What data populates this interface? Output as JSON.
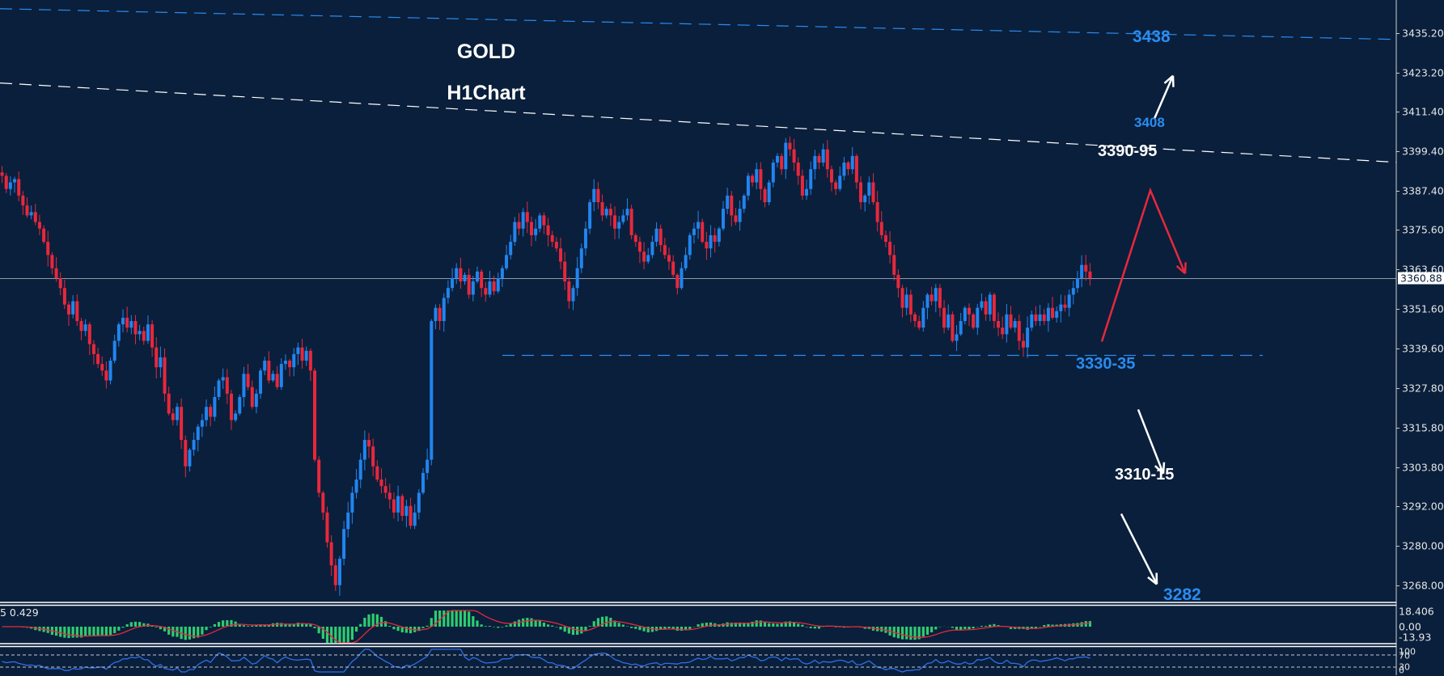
{
  "header": {
    "symbol": "GOLD",
    "timeframe_label": "H1Chart"
  },
  "annotations": {
    "target_top": "3438",
    "level_3408": "3408",
    "resistance": "3390-95",
    "support": "3330-35",
    "support_2": "3310-15",
    "target_bottom": "3282"
  },
  "price_axis": {
    "ticks": [
      "3435.20",
      "3423.20",
      "3411.40",
      "3399.40",
      "3387.40",
      "3375.60",
      "3363.60",
      "3351.60",
      "3339.60",
      "3327.80",
      "3315.80",
      "3303.80",
      "3292.00",
      "3280.00",
      "3268.00"
    ],
    "current_price": "3360.88"
  },
  "macd_panel": {
    "label": "5 0.429",
    "ticks": [
      "18.406",
      "0.00",
      "-13.93"
    ]
  },
  "rsi_panel": {
    "ticks": [
      "100",
      "70",
      "30",
      "0"
    ]
  },
  "colors": {
    "background": "#0a1f3b",
    "bull": "#2185f0",
    "bear": "#e8283c",
    "macd_hist": "#2ecc71",
    "macd_signal": "#e8283c",
    "rsi_line": "#2f6ee8",
    "trend_blue": "#2a8cf0",
    "trend_white": "#ffffff",
    "current_line": "#8e9aab"
  },
  "chart_data": {
    "type": "candlestick",
    "title": "GOLD H1Chart",
    "xlabel": "",
    "ylabel": "",
    "ylim": [
      3262,
      3446
    ],
    "current_price": 3360.88,
    "trendlines": [
      {
        "name": "upper-channel",
        "color": "blue",
        "style": "dashed",
        "from": [
          0,
          3442.6
        ],
        "to": [
          1726,
          3433.3
        ]
      },
      {
        "name": "mid-channel",
        "color": "white",
        "style": "dashed",
        "from": [
          0,
          3420.1
        ],
        "to": [
          1726,
          3396.1
        ]
      },
      {
        "name": "support-3330-35",
        "color": "blue",
        "style": "dashed",
        "from": [
          621,
          3337.6
        ],
        "to": [
          1561,
          3337.6
        ]
      }
    ],
    "projections": [
      {
        "color": "red",
        "path": [
          [
            1362,
            3341.8
          ],
          [
            1422,
            3387.6
          ],
          [
            1465,
            3362.4
          ]
        ]
      },
      {
        "color": "white",
        "path": [
          [
            1427,
            3409.3
          ],
          [
            1450,
            3422.3
          ]
        ]
      },
      {
        "color": "white",
        "path": [
          [
            1407,
            3321.2
          ],
          [
            1438,
            3301.8
          ]
        ]
      },
      {
        "color": "white",
        "path": [
          [
            1386,
            3289.6
          ],
          [
            1430,
            3268.3
          ]
        ]
      }
    ],
    "closes": [
      3392,
      3388,
      3390,
      3391,
      3386,
      3383,
      3380,
      3381,
      3378,
      3376,
      3372,
      3368,
      3364,
      3361,
      3358,
      3353,
      3350,
      3354,
      3348,
      3345,
      3347,
      3341,
      3338,
      3335,
      3333,
      3330,
      3336,
      3342,
      3347,
      3349,
      3346,
      3348,
      3344,
      3345,
      3342,
      3347,
      3340,
      3334,
      3337,
      3326,
      3320,
      3318,
      3322,
      3312,
      3304,
      3309,
      3312,
      3316,
      3318,
      3322,
      3319,
      3325,
      3330,
      3331,
      3326,
      3318,
      3320,
      3325,
      3332,
      3328,
      3322,
      3326,
      3333,
      3336,
      3330,
      3332,
      3328,
      3335,
      3336,
      3334,
      3338,
      3340,
      3336,
      3339,
      3333,
      3306,
      3296,
      3290,
      3281,
      3274,
      3268,
      3276,
      3285,
      3290,
      3296,
      3300,
      3306,
      3312,
      3310,
      3304,
      3300,
      3298,
      3296,
      3294,
      3290,
      3295,
      3289,
      3292,
      3286,
      3290,
      3296,
      3302,
      3306,
      3348,
      3352,
      3348,
      3355,
      3358,
      3361,
      3364,
      3360,
      3362,
      3356,
      3360,
      3363,
      3358,
      3356,
      3360,
      3357,
      3361,
      3364,
      3368,
      3372,
      3378,
      3376,
      3381,
      3378,
      3374,
      3376,
      3380,
      3377,
      3374,
      3372,
      3370,
      3366,
      3360,
      3354,
      3358,
      3364,
      3370,
      3376,
      3384,
      3388,
      3384,
      3380,
      3382,
      3380,
      3376,
      3378,
      3380,
      3382,
      3374,
      3372,
      3369,
      3366,
      3368,
      3372,
      3376,
      3371,
      3368,
      3366,
      3362,
      3358,
      3364,
      3368,
      3374,
      3376,
      3378,
      3372,
      3370,
      3374,
      3372,
      3376,
      3382,
      3386,
      3380,
      3378,
      3382,
      3386,
      3392,
      3390,
      3394,
      3388,
      3384,
      3390,
      3396,
      3398,
      3394,
      3402,
      3400,
      3396,
      3392,
      3386,
      3388,
      3394,
      3398,
      3396,
      3400,
      3394,
      3390,
      3388,
      3392,
      3396,
      3394,
      3398,
      3390,
      3384,
      3386,
      3390,
      3384,
      3378,
      3374,
      3372,
      3368,
      3362,
      3358,
      3352,
      3356,
      3350,
      3348,
      3346,
      3352,
      3356,
      3354,
      3358,
      3352,
      3346,
      3350,
      3342,
      3344,
      3348,
      3352,
      3350,
      3346,
      3352,
      3354,
      3350,
      3356,
      3348,
      3346,
      3344,
      3350,
      3346,
      3348,
      3342,
      3340,
      3346,
      3350,
      3348,
      3350,
      3348,
      3352,
      3349,
      3351,
      3353,
      3352,
      3356,
      3358,
      3361,
      3365,
      3363,
      3361
    ]
  }
}
